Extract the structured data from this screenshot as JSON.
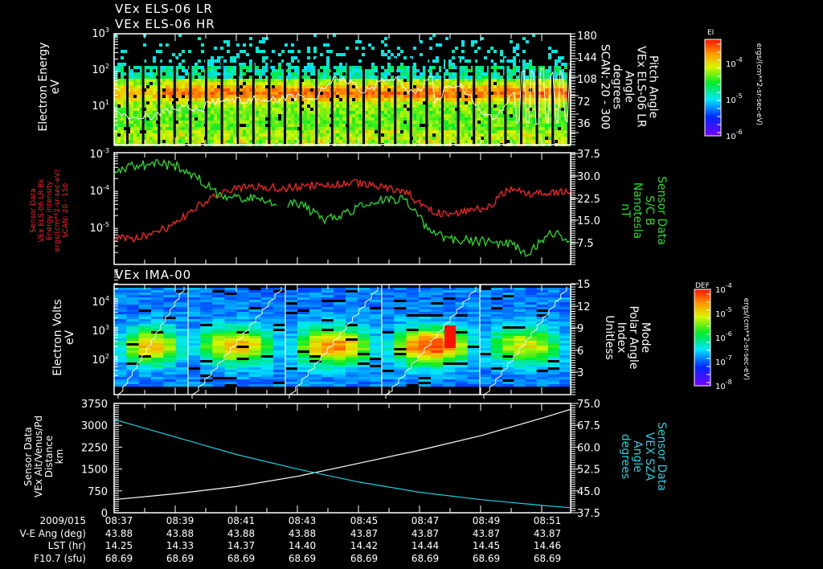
{
  "chart_data": [
    {
      "type": "heatmap",
      "panel": "els-spectrogram",
      "title_lines": [
        "VEx ELS-06 LR",
        "VEx ELS-06 HR"
      ],
      "ylabel": "Electron Energy",
      "yunit": "eV",
      "yscale": "log",
      "ylim": [
        1,
        1000
      ],
      "yticks": [
        "10^1",
        "10^2",
        "10^3"
      ],
      "y2label_lines": [
        "Pitch Angle",
        "VEx ELS-06 LR",
        "Angle",
        "degrees",
        "SCAN: 20 - 300"
      ],
      "y2ticks": [
        "36",
        "72",
        "108",
        "144",
        "180"
      ],
      "y2lim": [
        0,
        180
      ],
      "colorbar": {
        "label": "EI",
        "unit": "ergs/(cm**2-sr-sec-eV)",
        "ticks": [
          "10^-4",
          "10^-5",
          "10^-6"
        ]
      },
      "notes": "Red/orange band near 40-70 eV; white pitch-angle trace; vertical black gaps (29 columns)"
    },
    {
      "type": "line",
      "panel": "energy-intensity-and-b",
      "ylabel_lines": [
        "Sensor Data",
        "VEx ELS-06 LR-Bk",
        "Energy Intensity",
        "ergs/(cm**2-sr-sec-eV)",
        "SCAN: 20 - 150"
      ],
      "yscale": "log",
      "ylim": [
        "10^-6 (approx)",
        "10^-3"
      ],
      "yticks": [
        "10^-5",
        "10^-4",
        "10^-3"
      ],
      "y2label_lines": [
        "Sensor Data",
        "S/C B",
        "Nanotesla",
        "nT"
      ],
      "y2ticks": [
        "7.5",
        "15.0",
        "22.5",
        "30.0",
        "37.5"
      ],
      "y2lim": [
        0,
        37.5
      ],
      "series": [
        {
          "name": "Energy Intensity (red)",
          "color": "#ff2020",
          "trend": [
            0.75,
            0.77,
            0.72,
            0.62,
            0.48,
            0.38,
            0.32,
            0.3,
            0.32,
            0.3,
            0.28,
            0.28,
            0.27,
            0.32,
            0.34,
            0.5,
            0.55,
            0.52,
            0.5,
            0.32,
            0.38,
            0.36,
            0.34
          ]
        },
        {
          "name": "S/C B (green)",
          "color": "#20e020",
          "trend": [
            0.15,
            0.12,
            0.1,
            0.12,
            0.22,
            0.38,
            0.42,
            0.4,
            0.48,
            0.45,
            0.6,
            0.55,
            0.48,
            0.42,
            0.42,
            0.65,
            0.78,
            0.78,
            0.8,
            0.82,
            0.9,
            0.7,
            0.8
          ]
        }
      ]
    },
    {
      "type": "heatmap",
      "panel": "ima-spectrogram",
      "title": "VEx IMA-00",
      "ylabel": "Electron Volts",
      "yunit": "eV",
      "yscale": "log",
      "yticks": [
        "10^2",
        "10^3",
        "10^4"
      ],
      "y2label_lines": [
        "Mode",
        "Polar Angle",
        "Index",
        "Unitless"
      ],
      "y2ticks": [
        "3",
        "6",
        "9",
        "12",
        "15"
      ],
      "y2lim": [
        0,
        15
      ],
      "colorbar": {
        "label": "DEF",
        "unit": "ergs/(cm**2-sr-sec-eV)",
        "ticks": [
          "10^-4",
          "10^-5",
          "10^-6",
          "10^-7",
          "10^-8"
        ]
      },
      "notes": "5 sweep cycles with staircase polar angle index; peak flux ~300-1000 eV"
    },
    {
      "type": "line",
      "panel": "altitude-and-sza",
      "ylabel_lines": [
        "Sensor Data",
        "VEx Alt/Venus/Pd",
        "Distance",
        "km"
      ],
      "yticks": [
        "0",
        "750",
        "1500",
        "2250",
        "3000",
        "3750"
      ],
      "ylim": [
        0,
        3750
      ],
      "y2label_lines": [
        "Sensor Data",
        "VEX SZA",
        "Angle",
        "degrees"
      ],
      "y2ticks": [
        "37.5",
        "45.0",
        "52.5",
        "60.0",
        "67.5",
        "75.0"
      ],
      "y2lim": [
        37.5,
        75.0
      ],
      "series": [
        {
          "name": "Altitude (white)",
          "color": "#ffffff",
          "x": [
            "08:37",
            "08:39",
            "08:41",
            "08:43",
            "08:45",
            "08:47",
            "08:49",
            "08:51",
            "08:52"
          ],
          "values": [
            450,
            650,
            900,
            1250,
            1700,
            2150,
            2650,
            3250,
            3550
          ]
        },
        {
          "name": "SZA (cyan)",
          "color": "#20d0e0",
          "x": [
            "08:37",
            "08:39",
            "08:41",
            "08:43",
            "08:45",
            "08:47",
            "08:49",
            "08:51",
            "08:52"
          ],
          "values": [
            69.5,
            63.5,
            57.5,
            52.5,
            48.0,
            44.5,
            42.0,
            40.0,
            39.2
          ]
        }
      ]
    }
  ],
  "x_axis": {
    "rows": [
      {
        "label": "2009/015",
        "values": [
          "08:37",
          "08:39",
          "08:41",
          "08:43",
          "08:45",
          "08:47",
          "08:49",
          "08:51"
        ]
      },
      {
        "label": "V-E Ang (deg)",
        "values": [
          "43.88",
          "43.88",
          "43.88",
          "43.88",
          "43.87",
          "43.87",
          "43.87",
          "43.87"
        ]
      },
      {
        "label": "LST (hr)",
        "values": [
          "14.25",
          "14.33",
          "14.37",
          "14.40",
          "14.42",
          "14.44",
          "14.45",
          "14.46"
        ]
      },
      {
        "label": "F10.7 (sfu)",
        "values": [
          "68.69",
          "68.69",
          "68.69",
          "68.69",
          "68.69",
          "68.69",
          "68.69",
          "68.69"
        ]
      }
    ]
  },
  "colors": {
    "background": "#000000",
    "axis": "#ffffff",
    "red_series": "#ff2020",
    "green_series": "#20e020",
    "cyan_series": "#20d0e0"
  }
}
